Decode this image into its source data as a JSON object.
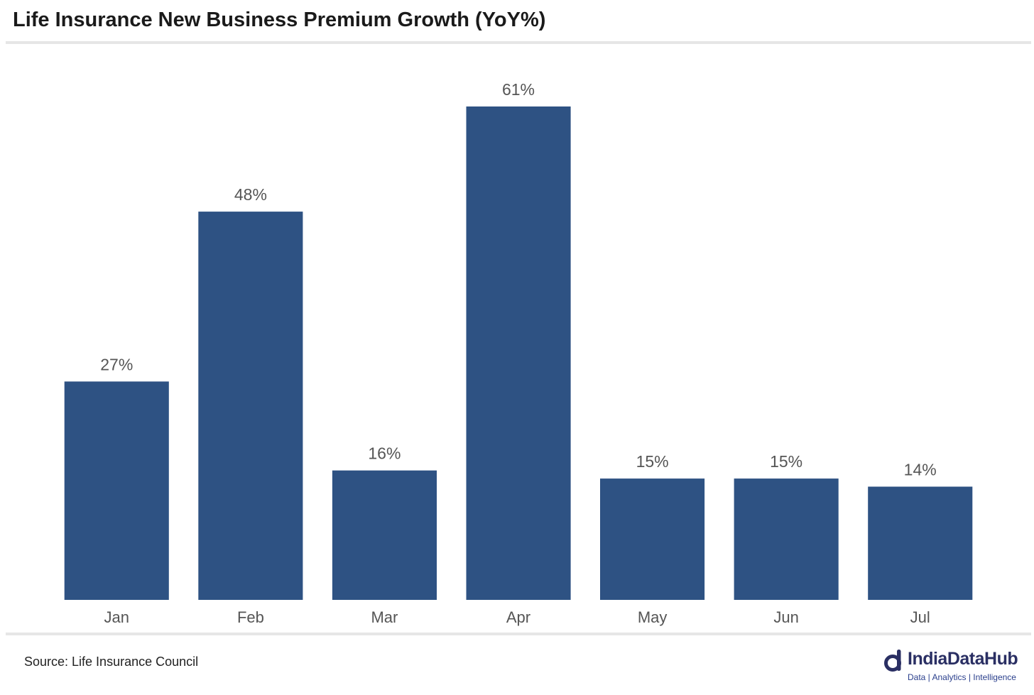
{
  "title": "Life Insurance New Business Premium Growth (YoY%)",
  "source": "Source: Life Insurance Council",
  "logo": {
    "name": "IndiaDataHub",
    "tagline": "Data | Analytics | Intelligence"
  },
  "colors": {
    "bar": "#2e5283",
    "data_label": "#555555",
    "tick_label": "#555555",
    "logo_mark": "#2a2f63"
  },
  "chart_data": {
    "type": "bar",
    "categories": [
      "Jan",
      "Feb",
      "Mar",
      "Apr",
      "May",
      "Jun",
      "Jul"
    ],
    "values": [
      27,
      48,
      16,
      61,
      15,
      15,
      14
    ],
    "data_labels": [
      "27%",
      "48%",
      "16%",
      "61%",
      "15%",
      "15%",
      "14%"
    ],
    "title": "Life Insurance New Business Premium Growth (YoY%)",
    "xlabel": "",
    "ylabel": "",
    "ylim": [
      0,
      61
    ],
    "grid": false,
    "legend": "none"
  }
}
